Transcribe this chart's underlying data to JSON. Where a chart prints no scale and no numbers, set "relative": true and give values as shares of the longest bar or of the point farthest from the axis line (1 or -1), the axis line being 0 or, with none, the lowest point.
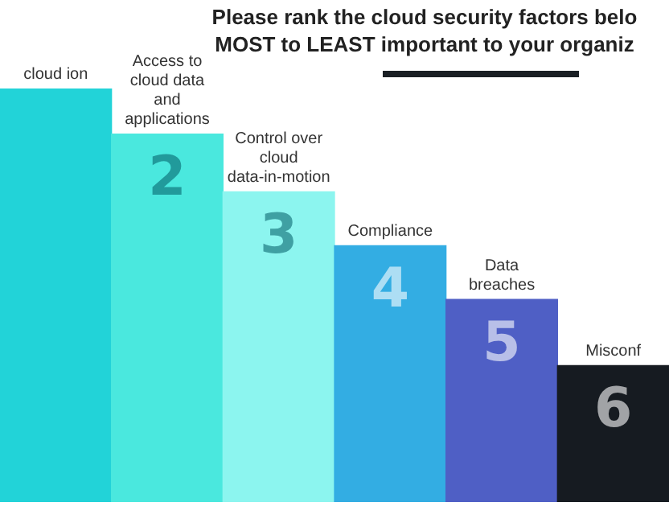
{
  "chart_data": {
    "type": "bar",
    "title": "Please rank the cloud security factors belo MOST to LEAST important to your organiz",
    "categories": [
      "cloud ion",
      "Access to cloud data and applications",
      "Control over cloud data-in-motion",
      "Compliance",
      "Data breaches",
      "Misconf"
    ],
    "values": [
      1,
      0.89,
      0.75,
      0.62,
      0.49,
      0.33
    ],
    "colors": [
      "#22d3d8",
      "#4ae8de",
      "#8cf5ef",
      "#33ade3",
      "#4f5fc5",
      "#161b21"
    ],
    "annotations": [
      "2",
      "3",
      "4",
      "5",
      "6"
    ],
    "relative": true,
    "legend": false
  }
}
